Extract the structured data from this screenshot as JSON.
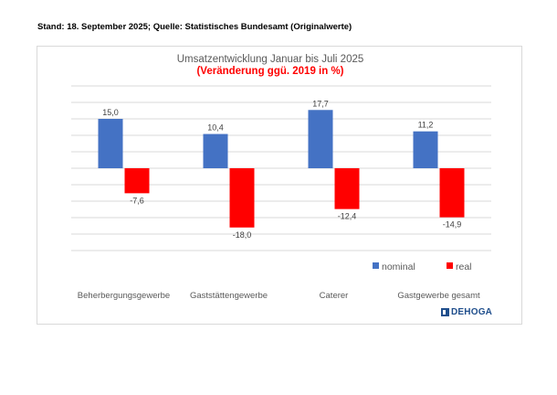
{
  "header": {
    "stand": "Stand: 18. September 2025; Quelle: Statistisches Bundesamt (Originalwerte)"
  },
  "logo": {
    "text": "DEHOGA"
  },
  "chart_data": {
    "type": "bar",
    "title": "Umsatzentwicklung Januar bis Juli 2025",
    "subtitle": "(Veränderung ggü. 2019 in %)",
    "categories": [
      "Beherbergungsgewerbe",
      "Gaststättengewerbe",
      "Caterer",
      "Gastgewerbe gesamt"
    ],
    "series": [
      {
        "name": "nominal",
        "color": "#4472c4",
        "values": [
          15.0,
          10.4,
          17.7,
          11.2
        ],
        "labels": [
          "15,0",
          "10,4",
          "17,7",
          "11,2"
        ]
      },
      {
        "name": "real",
        "color": "#ff0000",
        "values": [
          -7.6,
          -18.0,
          -12.4,
          -14.9
        ],
        "labels": [
          "-7,6",
          "-18,0",
          "-12,4",
          "-14,9"
        ]
      }
    ],
    "ylim": [
      -25,
      25
    ],
    "grid": true,
    "legend": "bottom-right",
    "title_color": "#595959",
    "subtitle_color": "#ff0000"
  }
}
